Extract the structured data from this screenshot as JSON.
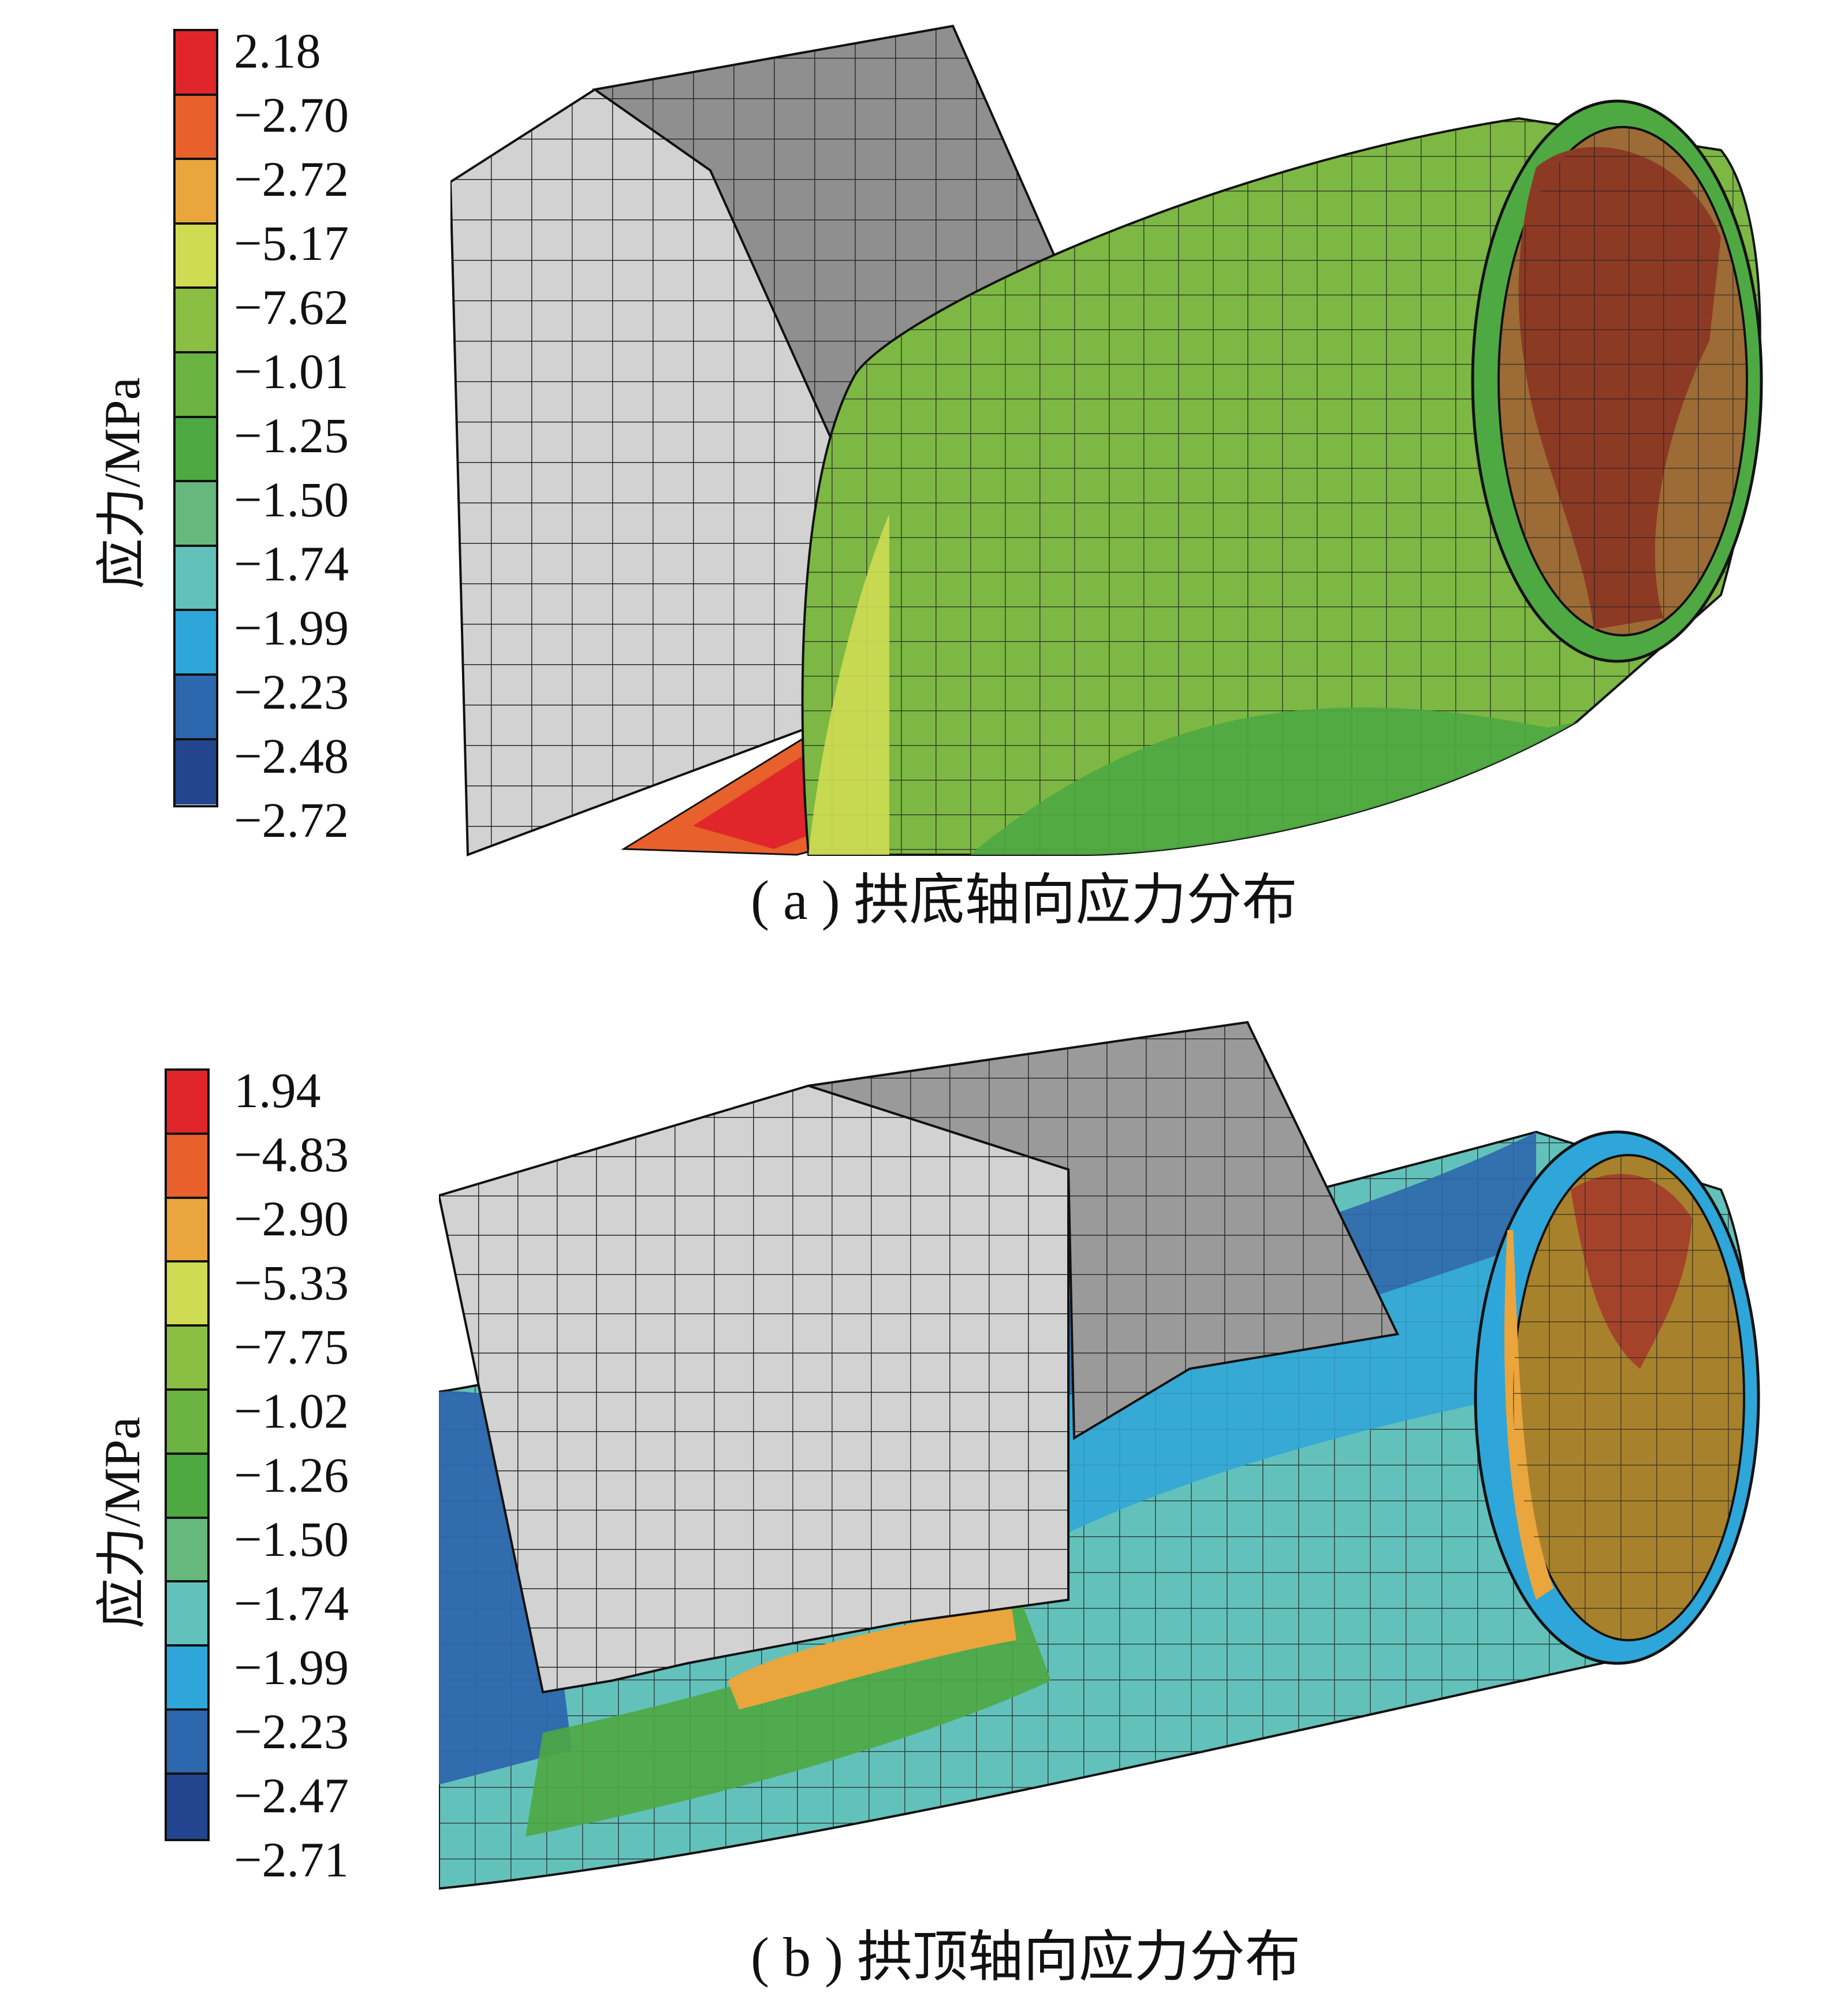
{
  "panels": [
    {
      "id": "a",
      "legend_title": "应力/MPa",
      "legend_values": [
        "2.18",
        "−2.70",
        "−2.72",
        "−5.17",
        "−7.62",
        "−1.01",
        "−1.25",
        "−1.50",
        "−1.74",
        "−1.99",
        "−2.23",
        "−2.48",
        "−2.72"
      ],
      "legend_colors": [
        "#e0262b",
        "#e8602c",
        "#eaa53d",
        "#cfdb53",
        "#8bbf44",
        "#6cb442",
        "#4ea943",
        "#67b87d",
        "#63c1bb",
        "#2ea6d9",
        "#2d67ad",
        "#23458f"
      ],
      "caption": "( a ) 拱底轴向应力分布"
    },
    {
      "id": "b",
      "legend_title": "应力/MPa",
      "legend_values": [
        "1.94",
        "−4.83",
        "−2.90",
        "−5.33",
        "−7.75",
        "−1.02",
        "−1.26",
        "−1.50",
        "−1.74",
        "−1.99",
        "−2.23",
        "−2.47",
        "−2.71"
      ],
      "legend_colors": [
        "#e0262b",
        "#e8602c",
        "#eaa53d",
        "#cfdb53",
        "#8bbf44",
        "#6cb442",
        "#4ea943",
        "#67b87d",
        "#63c1bb",
        "#2ea6d9",
        "#2d67ad",
        "#23458f"
      ],
      "caption": "( b ) 拱顶轴向应力分布"
    }
  ]
}
